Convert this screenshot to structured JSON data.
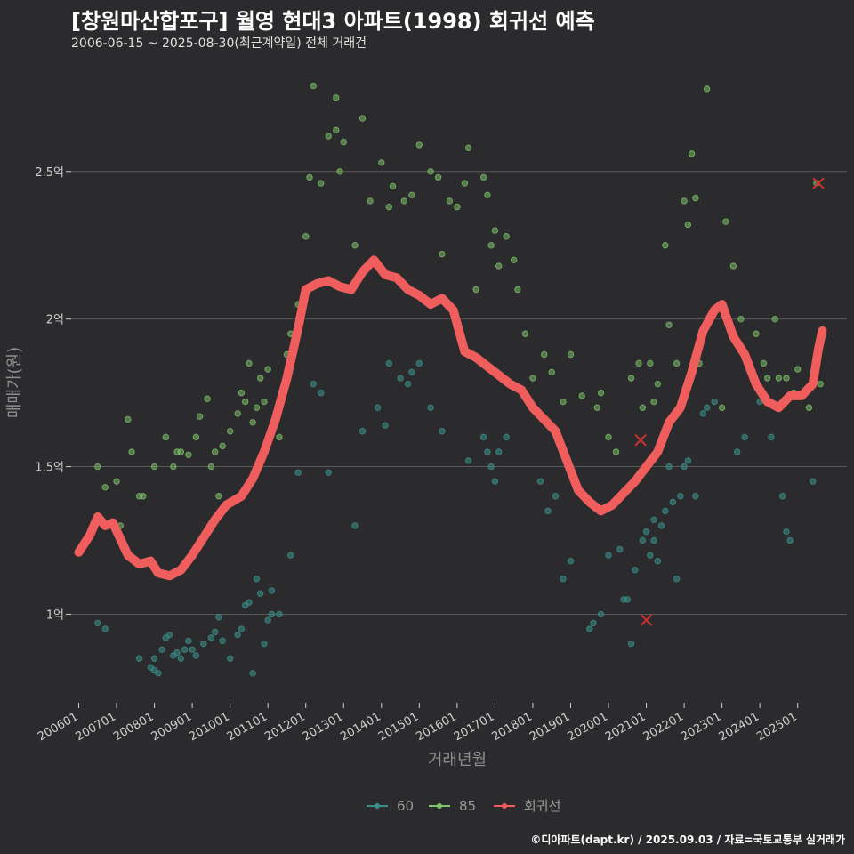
{
  "header": {
    "title": "[창원마산합포구] 월영 현대3 아파트(1998) 회귀선 예측",
    "subtitle": "2006-06-15 ~ 2025-08-30(최근계약일) 전체 거래건"
  },
  "footer": {
    "source": "©디아파트(dapt.kr) / 2025.09.03 / 자료=국토교통부 실거래가"
  },
  "colors": {
    "s60": "#3a8f8a",
    "s85": "#7fc56b",
    "regression": "#f05d5d",
    "outlier": "#d23030",
    "grid": "#5a5a5c"
  },
  "chart_data": {
    "type": "scatter",
    "xlabel": "거래년월",
    "ylabel": "매매가(원)",
    "xlim": [
      2005.8,
      2026.3
    ],
    "ylim": [
      0.7,
      2.87
    ],
    "yticks": [
      {
        "v": 1.0,
        "label": "1억"
      },
      {
        "v": 1.5,
        "label": "1.5억"
      },
      {
        "v": 2.0,
        "label": "2억"
      },
      {
        "v": 2.5,
        "label": "2.5억"
      }
    ],
    "xticks": [
      {
        "v": 2006.0,
        "label": "200601"
      },
      {
        "v": 2007.0,
        "label": "200701"
      },
      {
        "v": 2008.0,
        "label": "200801"
      },
      {
        "v": 2009.0,
        "label": "200901"
      },
      {
        "v": 2010.0,
        "label": "201001"
      },
      {
        "v": 2011.0,
        "label": "201101"
      },
      {
        "v": 2012.0,
        "label": "201201"
      },
      {
        "v": 2013.0,
        "label": "201301"
      },
      {
        "v": 2014.0,
        "label": "201401"
      },
      {
        "v": 2015.0,
        "label": "201501"
      },
      {
        "v": 2016.0,
        "label": "201601"
      },
      {
        "v": 2017.0,
        "label": "201701"
      },
      {
        "v": 2018.0,
        "label": "201801"
      },
      {
        "v": 2019.0,
        "label": "201901"
      },
      {
        "v": 2020.0,
        "label": "202001"
      },
      {
        "v": 2021.0,
        "label": "202101"
      },
      {
        "v": 2022.0,
        "label": "202201"
      },
      {
        "v": 2023.0,
        "label": "202301"
      },
      {
        "v": 2024.0,
        "label": "202401"
      },
      {
        "v": 2025.0,
        "label": "202501"
      }
    ],
    "legend": {
      "placement": "bottom",
      "items": [
        "60",
        "85",
        "회귀선"
      ]
    },
    "series": [
      {
        "name": "60",
        "points": [
          [
            2006.5,
            0.97
          ],
          [
            2006.7,
            0.95
          ],
          [
            2007.6,
            0.85
          ],
          [
            2007.9,
            0.82
          ],
          [
            2008.0,
            0.81
          ],
          [
            2008.1,
            0.8
          ],
          [
            2008.0,
            0.85
          ],
          [
            2008.2,
            0.88
          ],
          [
            2008.3,
            0.92
          ],
          [
            2008.4,
            0.93
          ],
          [
            2008.5,
            0.86
          ],
          [
            2008.6,
            0.87
          ],
          [
            2008.7,
            0.85
          ],
          [
            2008.8,
            0.88
          ],
          [
            2008.9,
            0.91
          ],
          [
            2009.0,
            0.88
          ],
          [
            2009.1,
            0.86
          ],
          [
            2009.3,
            0.9
          ],
          [
            2009.5,
            0.92
          ],
          [
            2009.6,
            0.94
          ],
          [
            2009.7,
            0.99
          ],
          [
            2009.8,
            0.91
          ],
          [
            2010.0,
            0.85
          ],
          [
            2010.2,
            0.93
          ],
          [
            2010.3,
            0.95
          ],
          [
            2010.4,
            1.03
          ],
          [
            2010.5,
            1.04
          ],
          [
            2010.6,
            0.8
          ],
          [
            2010.7,
            1.12
          ],
          [
            2010.8,
            1.07
          ],
          [
            2010.9,
            0.9
          ],
          [
            2011.0,
            0.98
          ],
          [
            2011.1,
            1.0
          ],
          [
            2011.1,
            1.08
          ],
          [
            2011.3,
            1.0
          ],
          [
            2011.6,
            1.2
          ],
          [
            2011.8,
            1.48
          ],
          [
            2012.2,
            1.78
          ],
          [
            2012.4,
            1.75
          ],
          [
            2012.6,
            1.48
          ],
          [
            2013.3,
            1.3
          ],
          [
            2013.5,
            1.62
          ],
          [
            2013.9,
            1.7
          ],
          [
            2014.1,
            1.64
          ],
          [
            2014.2,
            1.85
          ],
          [
            2014.5,
            1.8
          ],
          [
            2014.7,
            1.78
          ],
          [
            2014.8,
            1.82
          ],
          [
            2015.0,
            1.85
          ],
          [
            2015.3,
            1.7
          ],
          [
            2015.6,
            1.62
          ],
          [
            2016.3,
            1.52
          ],
          [
            2016.7,
            1.6
          ],
          [
            2016.8,
            1.55
          ],
          [
            2016.9,
            1.5
          ],
          [
            2017.0,
            1.45
          ],
          [
            2017.1,
            1.55
          ],
          [
            2017.3,
            1.6
          ],
          [
            2018.2,
            1.45
          ],
          [
            2018.4,
            1.35
          ],
          [
            2018.6,
            1.4
          ],
          [
            2018.8,
            1.12
          ],
          [
            2019.0,
            1.18
          ],
          [
            2019.5,
            0.95
          ],
          [
            2019.6,
            0.97
          ],
          [
            2019.8,
            1.0
          ],
          [
            2020.0,
            1.2
          ],
          [
            2020.3,
            1.22
          ],
          [
            2020.4,
            1.05
          ],
          [
            2020.5,
            1.05
          ],
          [
            2020.6,
            0.9
          ],
          [
            2020.7,
            1.15
          ],
          [
            2020.9,
            1.25
          ],
          [
            2021.0,
            1.28
          ],
          [
            2021.1,
            1.2
          ],
          [
            2021.2,
            1.25
          ],
          [
            2021.2,
            1.32
          ],
          [
            2021.3,
            1.18
          ],
          [
            2021.4,
            1.3
          ],
          [
            2021.5,
            1.35
          ],
          [
            2021.6,
            1.5
          ],
          [
            2021.7,
            1.38
          ],
          [
            2021.8,
            1.12
          ],
          [
            2021.9,
            1.4
          ],
          [
            2022.0,
            1.5
          ],
          [
            2022.1,
            1.52
          ],
          [
            2022.3,
            1.4
          ],
          [
            2022.5,
            1.68
          ],
          [
            2022.6,
            1.7
          ],
          [
            2022.8,
            1.72
          ],
          [
            2023.4,
            1.55
          ],
          [
            2023.6,
            1.6
          ],
          [
            2024.0,
            1.72
          ],
          [
            2024.3,
            1.6
          ],
          [
            2024.6,
            1.4
          ],
          [
            2024.7,
            1.28
          ],
          [
            2024.8,
            1.25
          ],
          [
            2025.4,
            1.45
          ]
        ]
      },
      {
        "name": "85",
        "points": [
          [
            2006.5,
            1.5
          ],
          [
            2006.7,
            1.43
          ],
          [
            2007.0,
            1.45
          ],
          [
            2007.1,
            1.3
          ],
          [
            2007.3,
            1.66
          ],
          [
            2007.4,
            1.55
          ],
          [
            2007.6,
            1.4
          ],
          [
            2007.7,
            1.4
          ],
          [
            2008.0,
            1.5
          ],
          [
            2008.3,
            1.6
          ],
          [
            2008.5,
            1.5
          ],
          [
            2008.6,
            1.55
          ],
          [
            2008.7,
            1.55
          ],
          [
            2008.9,
            1.54
          ],
          [
            2009.1,
            1.6
          ],
          [
            2009.2,
            1.67
          ],
          [
            2009.4,
            1.73
          ],
          [
            2009.5,
            1.5
          ],
          [
            2009.6,
            1.55
          ],
          [
            2009.7,
            1.4
          ],
          [
            2009.8,
            1.57
          ],
          [
            2010.0,
            1.62
          ],
          [
            2010.2,
            1.68
          ],
          [
            2010.3,
            1.75
          ],
          [
            2010.4,
            1.72
          ],
          [
            2010.5,
            1.85
          ],
          [
            2010.6,
            1.65
          ],
          [
            2010.7,
            1.7
          ],
          [
            2010.8,
            1.8
          ],
          [
            2010.9,
            1.72
          ],
          [
            2011.0,
            1.83
          ],
          [
            2011.2,
            1.65
          ],
          [
            2011.3,
            1.6
          ],
          [
            2011.5,
            1.88
          ],
          [
            2011.6,
            1.95
          ],
          [
            2011.8,
            2.05
          ],
          [
            2012.0,
            2.28
          ],
          [
            2012.1,
            2.48
          ],
          [
            2012.4,
            2.46
          ],
          [
            2012.6,
            2.62
          ],
          [
            2012.8,
            2.64
          ],
          [
            2013.0,
            2.6
          ],
          [
            2012.9,
            2.5
          ],
          [
            2012.2,
            2.79
          ],
          [
            2012.8,
            2.75
          ],
          [
            2013.3,
            2.25
          ],
          [
            2013.5,
            2.68
          ],
          [
            2013.7,
            2.4
          ],
          [
            2014.0,
            2.53
          ],
          [
            2014.2,
            2.38
          ],
          [
            2014.3,
            2.45
          ],
          [
            2014.6,
            2.4
          ],
          [
            2014.8,
            2.42
          ],
          [
            2015.0,
            2.59
          ],
          [
            2015.3,
            2.5
          ],
          [
            2015.5,
            2.48
          ],
          [
            2015.6,
            2.22
          ],
          [
            2015.8,
            2.4
          ],
          [
            2016.0,
            2.38
          ],
          [
            2016.2,
            2.46
          ],
          [
            2016.3,
            2.58
          ],
          [
            2016.5,
            2.1
          ],
          [
            2016.7,
            2.48
          ],
          [
            2016.8,
            2.42
          ],
          [
            2016.9,
            2.25
          ],
          [
            2017.0,
            2.3
          ],
          [
            2017.1,
            2.18
          ],
          [
            2017.3,
            2.28
          ],
          [
            2017.5,
            2.2
          ],
          [
            2017.6,
            2.1
          ],
          [
            2017.8,
            1.95
          ],
          [
            2018.0,
            1.8
          ],
          [
            2018.3,
            1.88
          ],
          [
            2018.5,
            1.82
          ],
          [
            2018.8,
            1.72
          ],
          [
            2019.0,
            1.88
          ],
          [
            2019.3,
            1.74
          ],
          [
            2019.7,
            1.7
          ],
          [
            2019.8,
            1.75
          ],
          [
            2020.0,
            1.6
          ],
          [
            2020.2,
            1.55
          ],
          [
            2020.6,
            1.8
          ],
          [
            2020.8,
            1.85
          ],
          [
            2020.9,
            1.7
          ],
          [
            2021.1,
            1.85
          ],
          [
            2021.2,
            1.72
          ],
          [
            2021.3,
            1.78
          ],
          [
            2021.5,
            2.25
          ],
          [
            2021.6,
            1.98
          ],
          [
            2021.8,
            1.85
          ],
          [
            2022.0,
            2.4
          ],
          [
            2022.1,
            2.32
          ],
          [
            2022.2,
            2.56
          ],
          [
            2022.3,
            2.41
          ],
          [
            2022.4,
            1.85
          ],
          [
            2022.6,
            2.78
          ],
          [
            2023.0,
            1.7
          ],
          [
            2023.1,
            2.33
          ],
          [
            2023.3,
            2.18
          ],
          [
            2023.5,
            2.0
          ],
          [
            2023.9,
            1.95
          ],
          [
            2024.1,
            1.85
          ],
          [
            2024.2,
            1.8
          ],
          [
            2024.4,
            2.0
          ],
          [
            2024.5,
            1.8
          ],
          [
            2024.7,
            1.8
          ],
          [
            2024.9,
            1.75
          ],
          [
            2025.0,
            1.83
          ],
          [
            2025.3,
            1.7
          ],
          [
            2025.5,
            2.46
          ],
          [
            2025.6,
            1.78
          ]
        ]
      },
      {
        "name": "회귀선",
        "points": [
          [
            2006.0,
            1.21
          ],
          [
            2006.3,
            1.27
          ],
          [
            2006.5,
            1.33
          ],
          [
            2006.7,
            1.3
          ],
          [
            2006.9,
            1.31
          ],
          [
            2007.3,
            1.2
          ],
          [
            2007.6,
            1.17
          ],
          [
            2007.9,
            1.18
          ],
          [
            2008.1,
            1.14
          ],
          [
            2008.4,
            1.13
          ],
          [
            2008.7,
            1.15
          ],
          [
            2009.0,
            1.2
          ],
          [
            2009.3,
            1.26
          ],
          [
            2009.6,
            1.32
          ],
          [
            2009.9,
            1.37
          ],
          [
            2010.3,
            1.4
          ],
          [
            2010.6,
            1.46
          ],
          [
            2010.9,
            1.55
          ],
          [
            2011.2,
            1.66
          ],
          [
            2011.5,
            1.8
          ],
          [
            2011.8,
            1.97
          ],
          [
            2012.0,
            2.1
          ],
          [
            2012.3,
            2.12
          ],
          [
            2012.6,
            2.13
          ],
          [
            2012.9,
            2.11
          ],
          [
            2013.2,
            2.1
          ],
          [
            2013.5,
            2.16
          ],
          [
            2013.8,
            2.2
          ],
          [
            2014.1,
            2.15
          ],
          [
            2014.4,
            2.14
          ],
          [
            2014.7,
            2.1
          ],
          [
            2015.0,
            2.08
          ],
          [
            2015.3,
            2.05
          ],
          [
            2015.6,
            2.07
          ],
          [
            2015.9,
            2.03
          ],
          [
            2016.2,
            1.89
          ],
          [
            2016.5,
            1.87
          ],
          [
            2016.8,
            1.84
          ],
          [
            2017.1,
            1.81
          ],
          [
            2017.4,
            1.78
          ],
          [
            2017.7,
            1.76
          ],
          [
            2018.0,
            1.7
          ],
          [
            2018.3,
            1.66
          ],
          [
            2018.6,
            1.62
          ],
          [
            2018.9,
            1.52
          ],
          [
            2019.2,
            1.42
          ],
          [
            2019.5,
            1.38
          ],
          [
            2019.8,
            1.35
          ],
          [
            2020.1,
            1.37
          ],
          [
            2020.4,
            1.41
          ],
          [
            2020.7,
            1.45
          ],
          [
            2021.0,
            1.5
          ],
          [
            2021.3,
            1.55
          ],
          [
            2021.6,
            1.65
          ],
          [
            2021.9,
            1.7
          ],
          [
            2022.2,
            1.82
          ],
          [
            2022.5,
            1.96
          ],
          [
            2022.8,
            2.03
          ],
          [
            2023.0,
            2.05
          ],
          [
            2023.3,
            1.94
          ],
          [
            2023.6,
            1.88
          ],
          [
            2023.9,
            1.78
          ],
          [
            2024.2,
            1.72
          ],
          [
            2024.5,
            1.7
          ],
          [
            2024.8,
            1.74
          ],
          [
            2025.1,
            1.74
          ],
          [
            2025.4,
            1.78
          ],
          [
            2025.55,
            1.9
          ],
          [
            2025.65,
            1.96
          ]
        ]
      }
    ],
    "outliers": [
      [
        2020.85,
        1.59
      ],
      [
        2021.0,
        0.98
      ],
      [
        2025.55,
        2.46
      ]
    ]
  }
}
